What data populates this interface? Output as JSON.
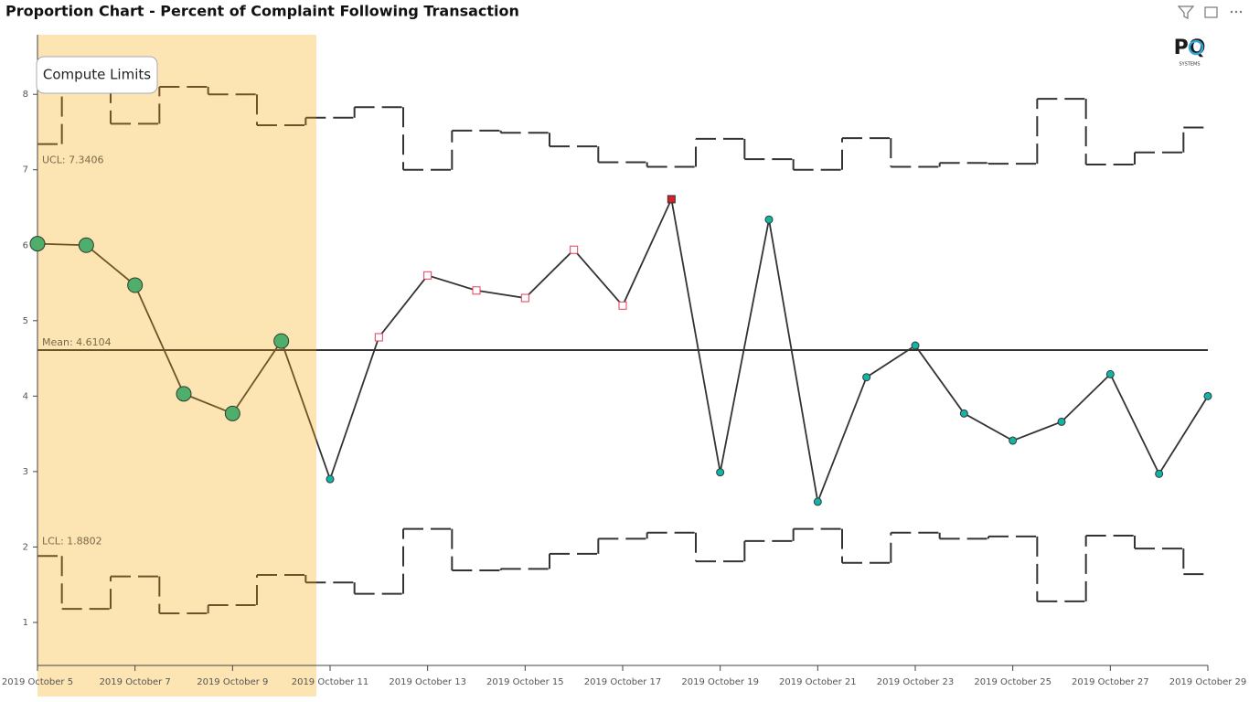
{
  "chart_data": {
    "type": "control",
    "title": "Proportion Chart - Percent of Complaint Following Transaction",
    "categories": [
      "2019 October 5",
      null,
      "2019 October 7",
      null,
      "2019 October 9",
      null,
      "2019 October 11",
      null,
      "2019 October 13",
      null,
      "2019 October 15",
      null,
      "2019 October 17",
      null,
      "2019 October 19",
      null,
      "2019 October 21",
      null,
      "2019 October 23",
      null,
      "2019 October 25",
      null,
      "2019 October 27",
      null,
      "2019 October 29"
    ],
    "values": [
      6.02,
      6.0,
      5.47,
      4.03,
      3.77,
      4.73,
      2.9,
      4.78,
      5.6,
      5.4,
      5.3,
      5.94,
      5.2,
      6.61,
      2.99,
      6.34,
      2.6,
      4.25,
      4.67,
      3.77,
      3.41,
      3.66,
      4.29,
      2.97,
      4.0
    ],
    "marker_shapes": [
      "big-circle",
      "big-circle",
      "big-circle",
      "big-circle",
      "big-circle",
      "big-circle",
      "circle",
      "square",
      "square",
      "square",
      "square",
      "square",
      "square",
      "square",
      "circle",
      "circle",
      "circle",
      "circle",
      "circle",
      "circle",
      "circle",
      "circle",
      "circle",
      "circle",
      "circle"
    ],
    "marker_colors": [
      "#4fae6a",
      "#4fae6a",
      "#4fae6a",
      "#4fae6a",
      "#4fae6a",
      "#4fae6a",
      "#13b3a6",
      "#ffffff",
      "#ffffff",
      "#ffffff",
      "#ffffff",
      "#ffffff",
      "#ffffff",
      "#d4202c",
      "#13b3a6",
      "#13b3a6",
      "#13b3a6",
      "#13b3a6",
      "#13b3a6",
      "#13b3a6",
      "#13b3a6",
      "#13b3a6",
      "#13b3a6",
      "#13b3a6",
      "#13b3a6"
    ],
    "ucl": [
      7.3406,
      8.15,
      7.61,
      8.1,
      8.0,
      7.59,
      7.69,
      7.83,
      7.0,
      7.52,
      7.49,
      7.31,
      7.1,
      7.04,
      7.41,
      7.14,
      7.0,
      7.42,
      7.04,
      7.09,
      7.08,
      7.94,
      7.07,
      7.23,
      7.56
    ],
    "lcl": [
      1.8802,
      1.18,
      1.61,
      1.12,
      1.23,
      1.63,
      1.53,
      1.38,
      2.24,
      1.69,
      1.71,
      1.91,
      2.11,
      2.19,
      1.81,
      2.08,
      2.24,
      1.79,
      2.19,
      2.11,
      2.14,
      1.28,
      2.15,
      1.98,
      1.64
    ],
    "mean": 4.6104,
    "annotations": [
      {
        "label": "UCL: 7.3406",
        "value": 7.3406
      },
      {
        "label": "Mean: 4.6104",
        "value": 4.6104
      },
      {
        "label": "LCL: 1.8802",
        "value": 1.8802
      }
    ],
    "line_color": "#333333",
    "baseline_color": "#6b5428",
    "ylim": [
      0.43,
      8.79
    ],
    "yticks": [
      1,
      2,
      3,
      4,
      5,
      6,
      7,
      8
    ]
  },
  "button": "Compute Limits",
  "logo": {
    "mark": "PQ",
    "text": "SYSTEMS"
  }
}
